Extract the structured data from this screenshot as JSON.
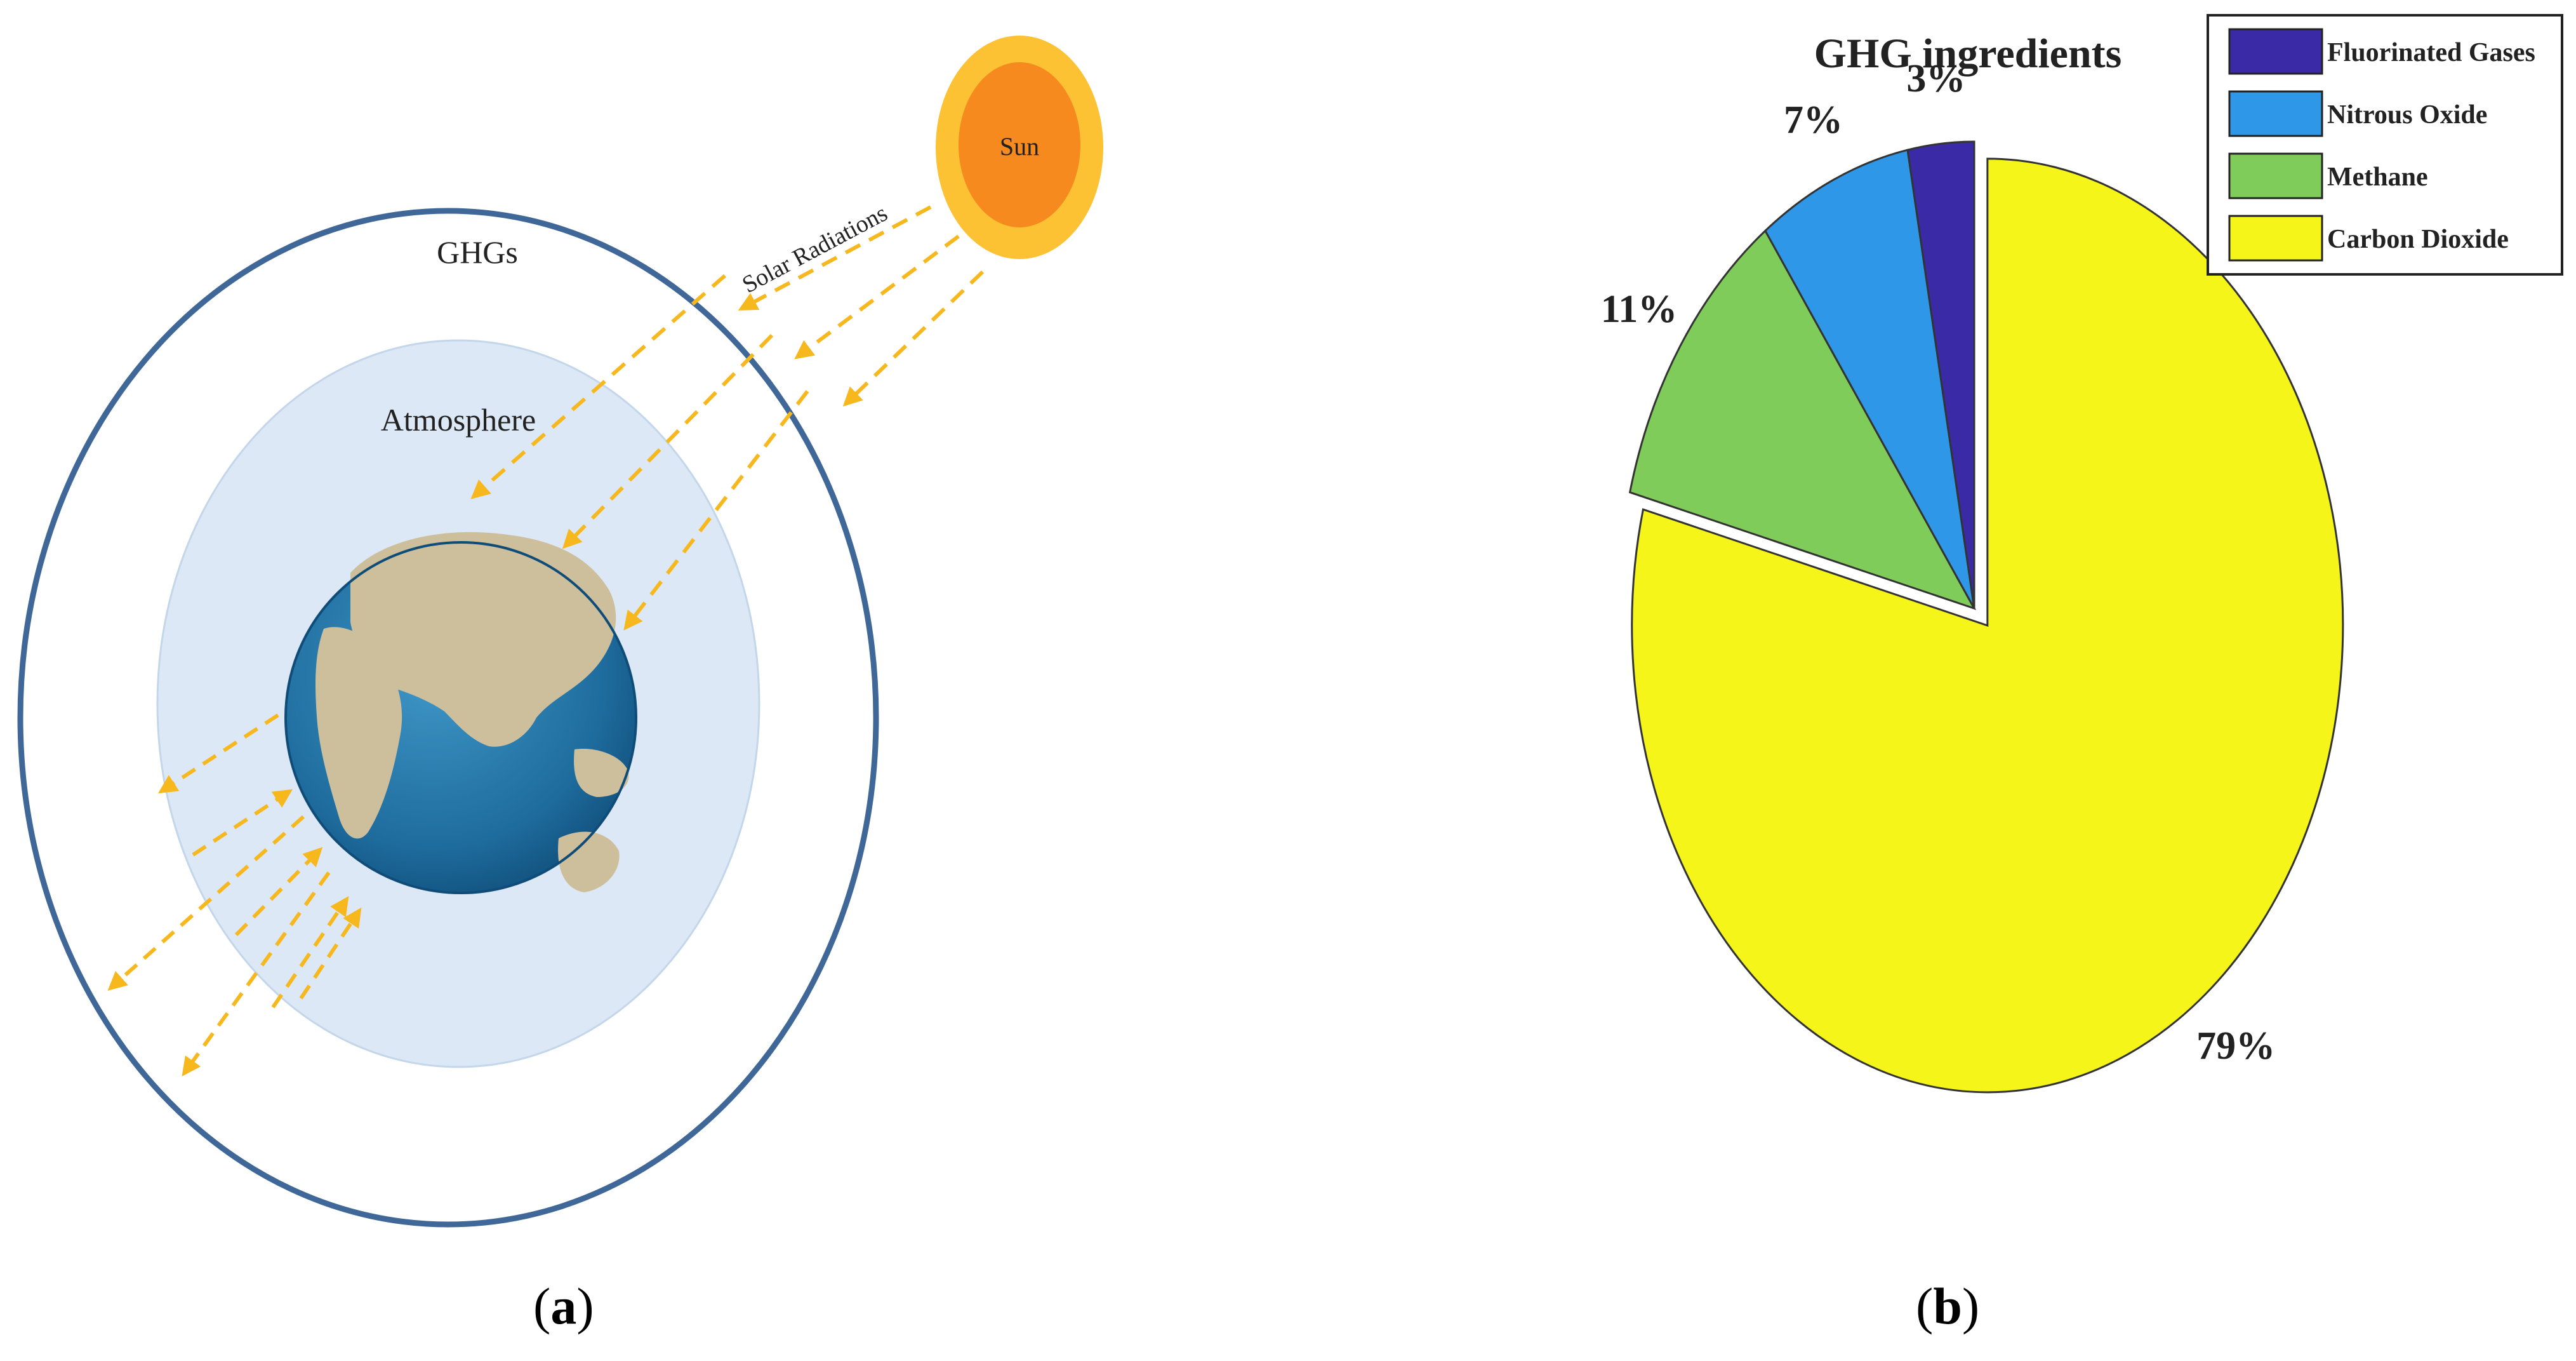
{
  "figure_a": {
    "sun_label": "Sun",
    "solar_label": "Solar Radiations",
    "ghg_label": "GHGs",
    "atmosphere_label": "Atmosphere",
    "caption": "a",
    "colors": {
      "ghg_ring": "#3f6898",
      "atmosphere": "#dce8f5",
      "sun_outer": "#fcc233",
      "sun_inner": "#f68a1e",
      "rays": "#f6b81c",
      "ocean": "#1e6c9d",
      "land": "#cdbf9c"
    }
  },
  "figure_b": {
    "title": "GHG ingredients",
    "caption": "b",
    "legend": [
      {
        "label": "Fluorinated Gases",
        "color": "#3a2aa6"
      },
      {
        "label": "Nitrous Oxide",
        "color": "#2f97e8"
      },
      {
        "label": "Methane",
        "color": "#7fcc5a"
      },
      {
        "label": "Carbon Dioxide",
        "color": "#f5f519"
      }
    ]
  },
  "chart_data": {
    "type": "pie",
    "title": "GHG ingredients",
    "categories": [
      "Carbon Dioxide",
      "Methane",
      "Nitrous Oxide",
      "Fluorinated Gases"
    ],
    "values": [
      79,
      11,
      7,
      3
    ],
    "labels": [
      "79%",
      "11%",
      "7%",
      "3%"
    ],
    "colors": [
      "#f5f519",
      "#7fcc5a",
      "#2f97e8",
      "#3a2aa6"
    ],
    "exploded": [
      "Carbon Dioxide"
    ],
    "legend_position": "top-right"
  }
}
